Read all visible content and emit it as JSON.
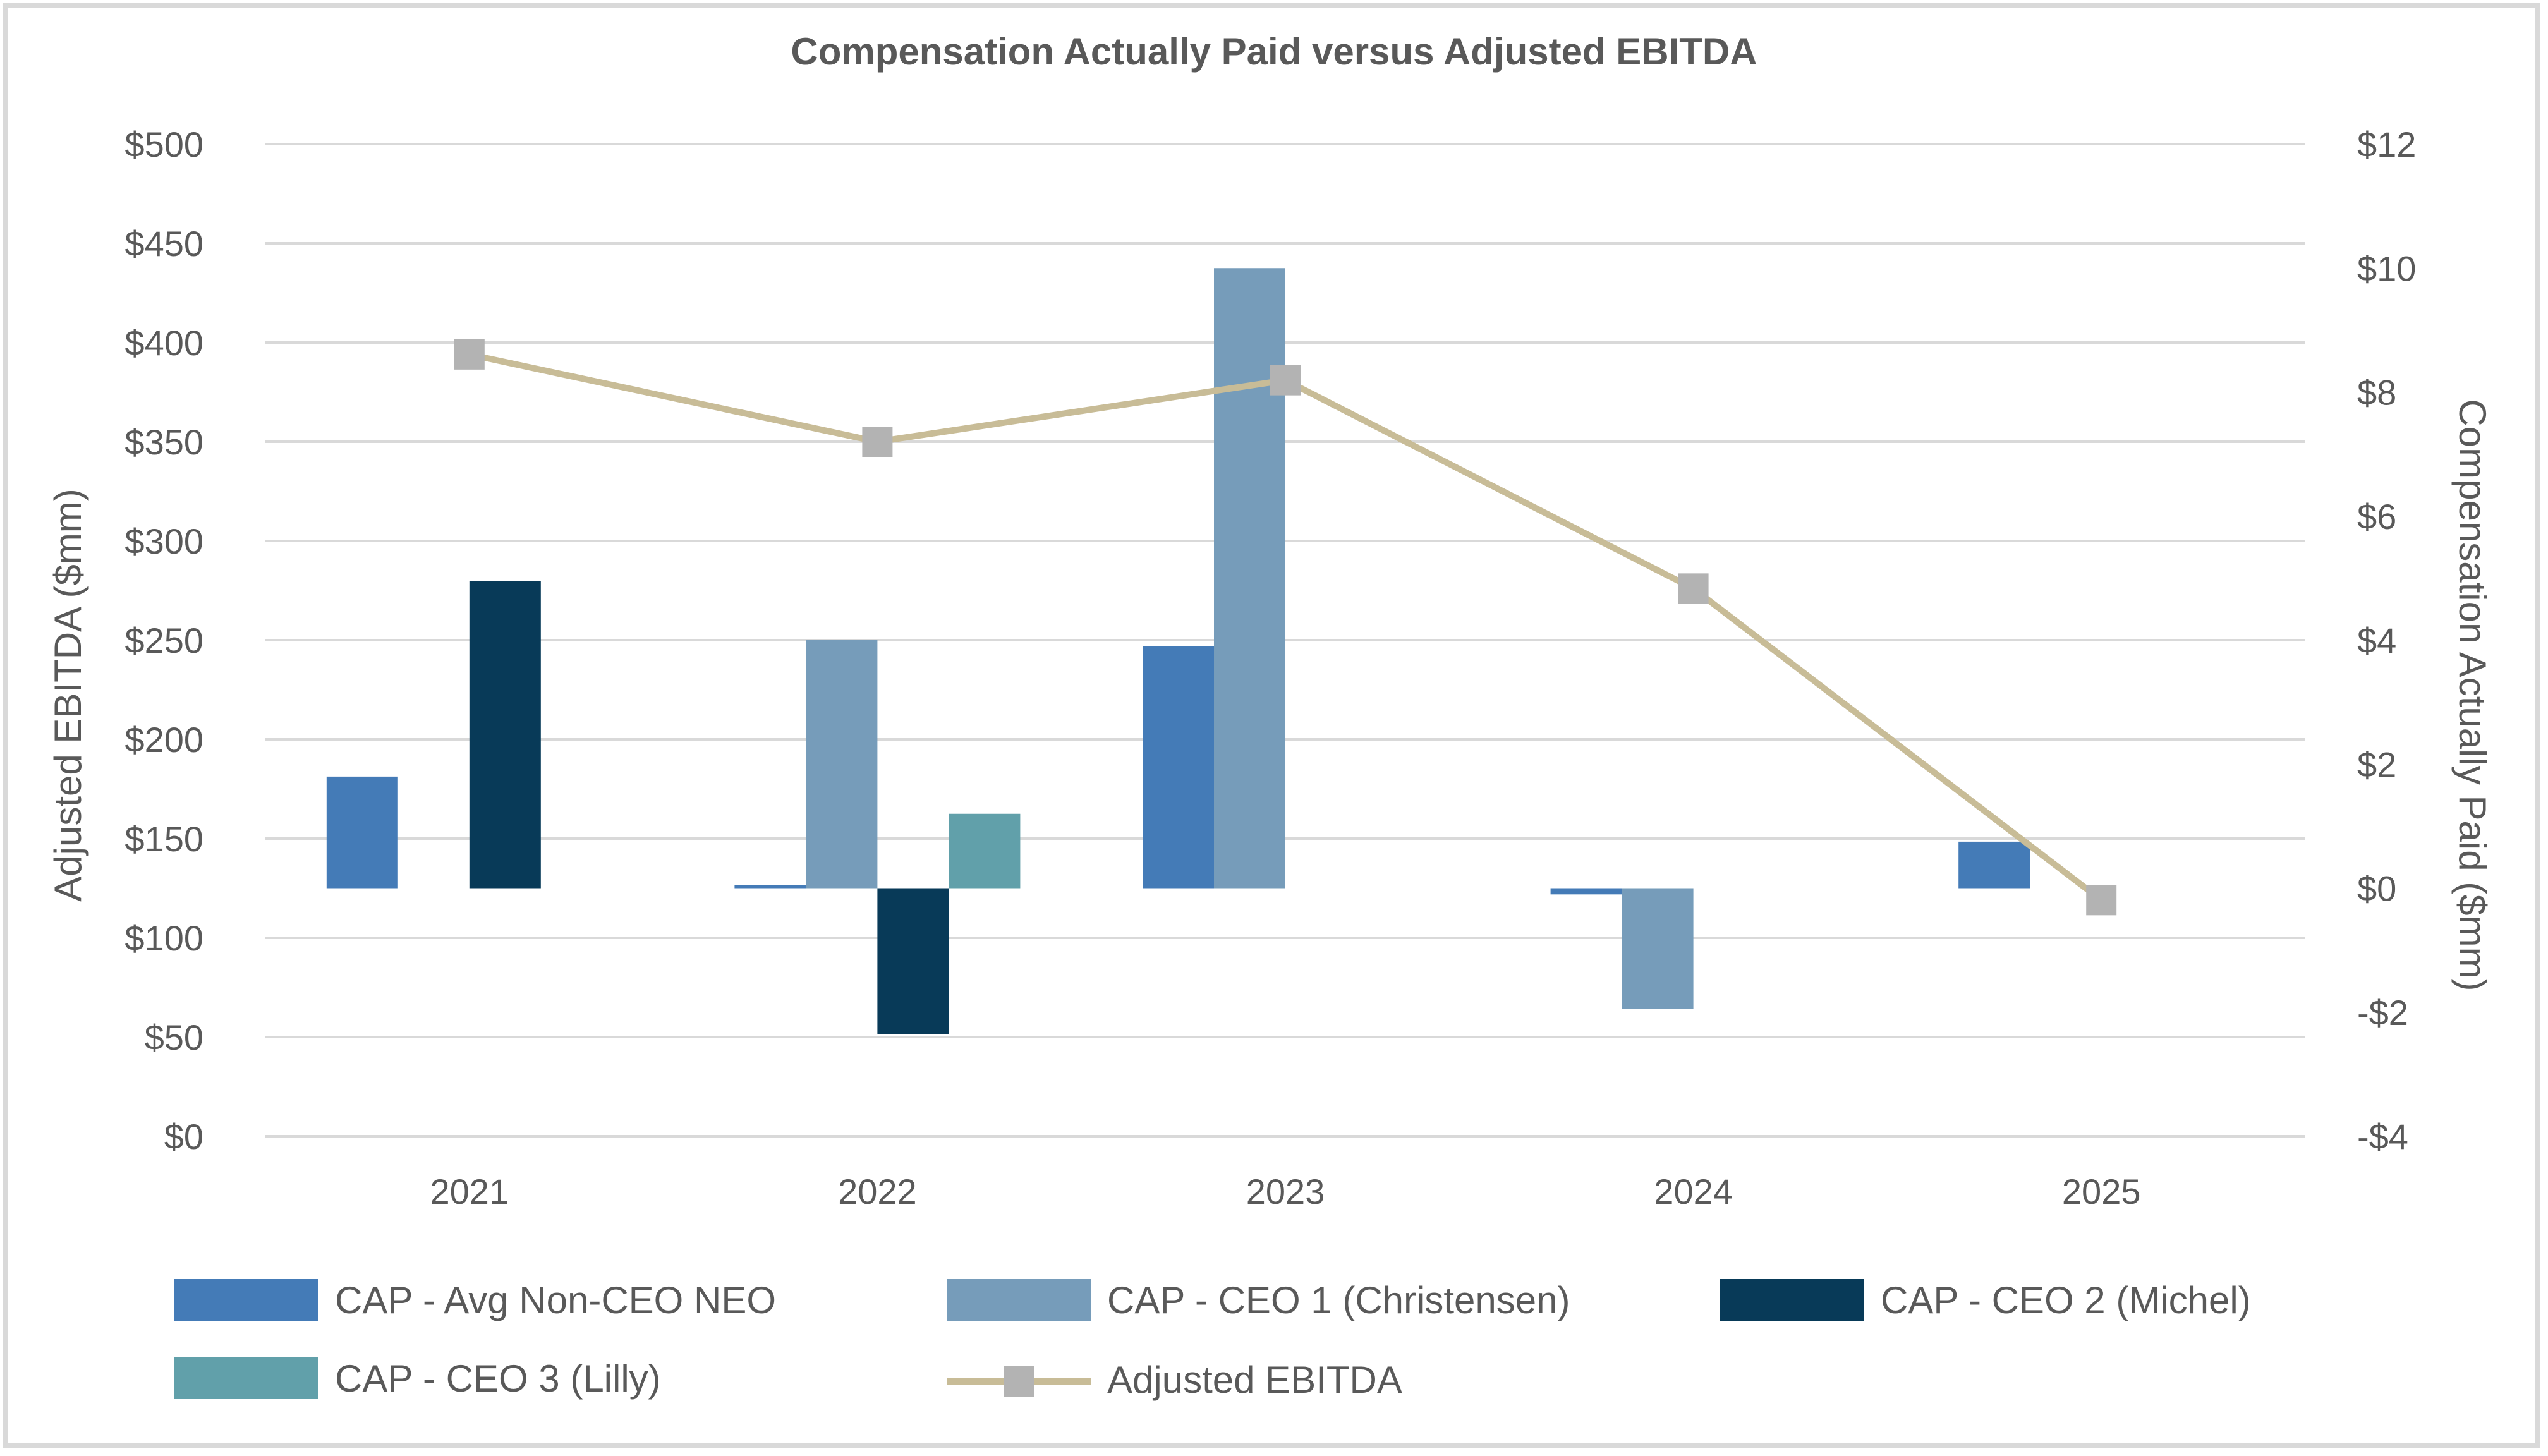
{
  "chart_data": {
    "type": "bar",
    "title": "Compensation Actually Paid versus Adjusted EBITDA",
    "categories": [
      "2021",
      "2022",
      "2023",
      "2024",
      "2025"
    ],
    "left_axis": {
      "label": "Adjusted EBITDA ($mm)",
      "range": [
        0,
        500
      ],
      "ticks": [
        0,
        50,
        100,
        150,
        200,
        250,
        300,
        350,
        400,
        450,
        500
      ],
      "tick_labels": [
        "$0",
        "$50",
        "$100",
        "$150",
        "$200",
        "$250",
        "$300",
        "$350",
        "$400",
        "$450",
        "$500"
      ]
    },
    "right_axis": {
      "label": "Compensation Actually Paid ($mm)",
      "range": [
        -4,
        12
      ],
      "ticks": [
        -4,
        -2,
        0,
        2,
        4,
        6,
        8,
        10,
        12
      ],
      "tick_labels": [
        "-$4",
        "-$2",
        "$0",
        "$2",
        "$4",
        "$6",
        "$8",
        "$10",
        "$12"
      ]
    },
    "bar_series": [
      {
        "name": "CAP - Avg Non-CEO NEO",
        "color": "#447bb7",
        "values": [
          1.8,
          0.05,
          3.9,
          -0.1,
          0.75
        ]
      },
      {
        "name": "CAP - CEO 1 (Christensen)",
        "color": "#769cba",
        "values": [
          null,
          4.0,
          10.0,
          -1.95,
          null
        ]
      },
      {
        "name": "CAP - CEO 2 (Michel)",
        "color": "#083a58",
        "values": [
          4.95,
          -2.35,
          null,
          null,
          null
        ]
      },
      {
        "name": "CAP - CEO 3 (Lilly)",
        "color": "#61a0aa",
        "values": [
          null,
          1.2,
          null,
          null,
          null
        ]
      }
    ],
    "line_series": {
      "name": "Adjusted EBITDA",
      "axis": "left",
      "line_color": "#c8bc97",
      "marker_color": "#b3b3b3",
      "values": [
        394,
        350,
        381,
        276,
        119
      ]
    },
    "grid": true,
    "legend": "bottom"
  }
}
